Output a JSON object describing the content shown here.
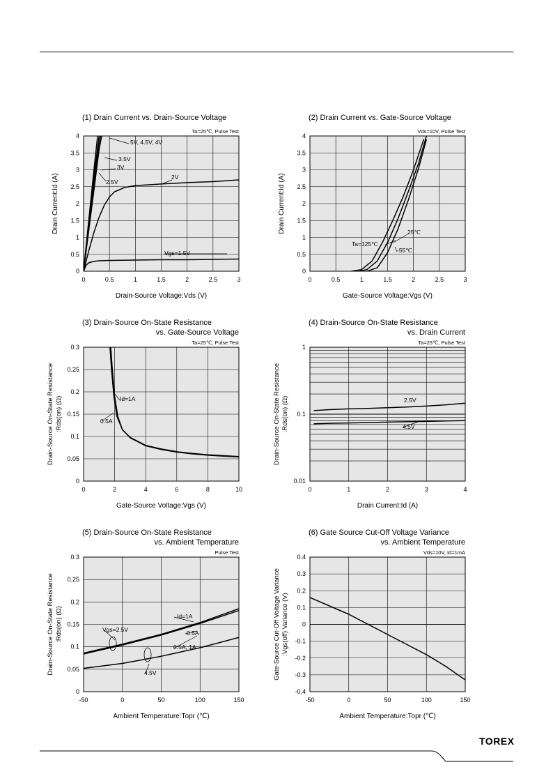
{
  "brand": "TOREX",
  "chart_data": [
    {
      "type": "line",
      "title": "(1) Drain Current vs. Drain-Source Voltage",
      "subtitle": "",
      "condition": "Ta=25℃, Pulse Test",
      "xlabel": "Drain-Source Voltage:Vds  (V)",
      "ylabel": "Drain Current:Id  (A)",
      "xlim": [
        0,
        3
      ],
      "ylim": [
        0,
        4
      ],
      "xticks": [
        "0",
        "0.5",
        "1",
        "1.5",
        "2",
        "2.5",
        "3"
      ],
      "yticks": [
        "0",
        "0.5",
        "1",
        "1.5",
        "2",
        "2.5",
        "3",
        "3.5",
        "4"
      ],
      "grid": true,
      "series": [
        {
          "name": "Vgs=1.5V",
          "x": [
            0,
            0.05,
            0.1,
            0.2,
            0.3,
            0.5,
            1,
            1.5,
            2,
            2.5,
            3
          ],
          "y": [
            0,
            0.18,
            0.25,
            0.29,
            0.31,
            0.32,
            0.33,
            0.34,
            0.34,
            0.35,
            0.36
          ]
        },
        {
          "name": "2V",
          "x": [
            0,
            0.1,
            0.2,
            0.3,
            0.4,
            0.5,
            0.6,
            0.8,
            1.0,
            1.5,
            2.0,
            2.5,
            3.0
          ],
          "y": [
            0,
            0.6,
            1.15,
            1.6,
            1.95,
            2.2,
            2.35,
            2.48,
            2.53,
            2.58,
            2.62,
            2.65,
            2.7
          ]
        },
        {
          "name": "2.5V",
          "x": [
            0,
            0.1,
            0.2,
            0.3,
            0.35
          ],
          "y": [
            0,
            1.2,
            2.4,
            3.6,
            4.0
          ]
        },
        {
          "name": "3V",
          "x": [
            0,
            0.1,
            0.2,
            0.3,
            0.33
          ],
          "y": [
            0,
            1.3,
            2.6,
            3.8,
            4.0
          ]
        },
        {
          "name": "3.5V",
          "x": [
            0,
            0.1,
            0.2,
            0.3
          ],
          "y": [
            0,
            1.4,
            2.8,
            4.0
          ]
        },
        {
          "name": "5V, 4.5V, 4V",
          "x": [
            0,
            0.1,
            0.2,
            0.27
          ],
          "y": [
            0,
            1.5,
            3.0,
            4.0
          ]
        }
      ],
      "labels": [
        "5V, 4.5V, 4V",
        "3.5V",
        "3V",
        "2.5V",
        "2V",
        "Vgs=1.5V"
      ]
    },
    {
      "type": "line",
      "title": "(2) Drain Current vs. Gate-Source Voltage",
      "subtitle": "",
      "condition": "Vds=10V, Pulse Test",
      "xlabel": "Gate-Source Voltage:Vgs  (V)",
      "ylabel": "Drain Current:Id  (A)",
      "xlim": [
        0,
        3
      ],
      "ylim": [
        0,
        4
      ],
      "xticks": [
        "0",
        "0.5",
        "1",
        "1.5",
        "2",
        "2.5",
        "3"
      ],
      "yticks": [
        "0",
        "0.5",
        "1",
        "1.5",
        "2",
        "2.5",
        "3",
        "3.5",
        "4"
      ],
      "grid": true,
      "series": [
        {
          "name": "Ta=125℃",
          "x": [
            0.8,
            1.0,
            1.2,
            1.4,
            1.6,
            1.8,
            2.0,
            2.2
          ],
          "y": [
            0.0,
            0.05,
            0.3,
            0.85,
            1.5,
            2.2,
            3.0,
            3.9
          ]
        },
        {
          "name": "25℃",
          "x": [
            0.95,
            1.1,
            1.3,
            1.5,
            1.7,
            1.9,
            2.1,
            2.25
          ],
          "y": [
            0.0,
            0.05,
            0.3,
            0.85,
            1.55,
            2.35,
            3.2,
            4.0
          ]
        },
        {
          "name": "-55℃",
          "x": [
            1.1,
            1.3,
            1.5,
            1.7,
            1.9,
            2.1,
            2.25
          ],
          "y": [
            0.0,
            0.1,
            0.55,
            1.25,
            2.1,
            3.05,
            3.9
          ]
        }
      ],
      "labels": [
        "25℃",
        "Ta=125℃",
        "-55℃"
      ]
    },
    {
      "type": "line",
      "title": "(3) Drain-Source On-State Resistance",
      "subtitle": "vs. Gate-Source Voltage",
      "condition": "Ta=25℃, Pulse Test",
      "xlabel": "Gate-Source Voltage:Vgs  (V)",
      "ylabel": "Drain-Source On-State Resistance",
      "ylabel2": ":Rds(on) (Ω)",
      "xlim": [
        0,
        10
      ],
      "ylim": [
        0,
        0.3
      ],
      "xticks": [
        "0",
        "2",
        "4",
        "6",
        "8",
        "10"
      ],
      "yticks": [
        "0",
        "0.05",
        "0.1",
        "0.15",
        "0.2",
        "0.25",
        "0.3"
      ],
      "grid": true,
      "series": [
        {
          "name": "Id=1A",
          "x": [
            1.75,
            1.85,
            2.0,
            2.2,
            2.5,
            3.0,
            4.0,
            5.0,
            6.0,
            7.0,
            8.0,
            9.0,
            10.0
          ],
          "y": [
            0.3,
            0.25,
            0.19,
            0.145,
            0.115,
            0.098,
            0.08,
            0.072,
            0.066,
            0.062,
            0.059,
            0.057,
            0.055
          ]
        },
        {
          "name": "0.5A",
          "x": [
            1.7,
            1.8,
            1.95,
            2.15,
            2.5,
            3.0,
            4.0,
            5.0,
            6.0,
            7.0,
            8.0,
            9.0,
            10.0
          ],
          "y": [
            0.3,
            0.25,
            0.19,
            0.145,
            0.115,
            0.097,
            0.079,
            0.071,
            0.065,
            0.061,
            0.058,
            0.056,
            0.054
          ]
        }
      ],
      "labels": [
        "Id=1A",
        "0.5A"
      ]
    },
    {
      "type": "line",
      "title": "(4) Drain-Source On-State Resistance",
      "subtitle": "vs. Drain Current",
      "condition": "Ta=25℃, Pulse Test",
      "xlabel": "Drain Current:Id  (A)",
      "ylabel": "Drain-Source On-State Resistance",
      "ylabel2": ":Rds(on) (Ω)",
      "xlim": [
        0,
        4
      ],
      "ylim": [
        0.01,
        1
      ],
      "yscale": "log",
      "xticks": [
        "0",
        "1",
        "2",
        "3",
        "4"
      ],
      "yticks": [
        "0.01",
        "0.1",
        "1"
      ],
      "grid": true,
      "series": [
        {
          "name": "2.5V",
          "x": [
            0.1,
            0.5,
            1,
            1.5,
            2,
            2.5,
            3,
            3.5,
            4
          ],
          "y": [
            0.113,
            0.117,
            0.12,
            0.122,
            0.125,
            0.128,
            0.132,
            0.138,
            0.146
          ]
        },
        {
          "name": "4.5V",
          "x": [
            0.1,
            0.5,
            1,
            1.5,
            2,
            2.5,
            3,
            3.5,
            4
          ],
          "y": [
            0.072,
            0.073,
            0.074,
            0.075,
            0.076,
            0.077,
            0.078,
            0.079,
            0.08
          ]
        }
      ],
      "labels": [
        "2.5V",
        "4.5V"
      ]
    },
    {
      "type": "line",
      "title": "(5) Drain-Source On-State Resistance",
      "subtitle": "vs. Ambient Temperature",
      "condition": "Pulse Test",
      "xlabel": "Ambient Temperature:Topr (℃)",
      "ylabel": "Drain-Source On-State Resistance",
      "ylabel2": ":Rds(on) (Ω)",
      "xlim": [
        -50,
        150
      ],
      "ylim": [
        0,
        0.3
      ],
      "xticks": [
        "-50",
        "0",
        "50",
        "100",
        "150"
      ],
      "yticks": [
        "0",
        "0.05",
        "0.1",
        "0.15",
        "0.2",
        "0.25",
        "0.3"
      ],
      "grid": true,
      "series": [
        {
          "name": "Vgs=2.5V Id=1A",
          "x": [
            -50,
            0,
            50,
            100,
            150
          ],
          "y": [
            0.086,
            0.106,
            0.128,
            0.154,
            0.185
          ]
        },
        {
          "name": "Vgs=2.5V 0.5A",
          "x": [
            -50,
            0,
            50,
            100,
            150
          ],
          "y": [
            0.084,
            0.104,
            0.126,
            0.152,
            0.181
          ]
        },
        {
          "name": "4.5V 0.5A, 1A",
          "x": [
            -50,
            0,
            50,
            100,
            150
          ],
          "y": [
            0.052,
            0.063,
            0.079,
            0.098,
            0.121
          ]
        }
      ],
      "labels": [
        "Id=1A",
        "Vgs=2.5V",
        "0.5A",
        "0.5A, 1A",
        "4.5V"
      ]
    },
    {
      "type": "line",
      "title": "(6) Gate Source Cut-Off Voltage Variance",
      "subtitle": "vs. Ambient Temperature",
      "condition": "Vds=10V, Id=1mA",
      "xlabel": "Ambient Temperature:Topr (℃)",
      "ylabel": "Gate-Source Cut-Off Voltage Variance",
      "ylabel2": ":Vgs(off) Variance  (V)",
      "xlim": [
        -50,
        150
      ],
      "ylim": [
        -0.4,
        0.4
      ],
      "xticks": [
        "-50",
        "0",
        "50",
        "100",
        "150"
      ],
      "yticks": [
        "-0.4",
        "-0.3",
        "-0.2",
        "-0.1",
        "0",
        "0.1",
        "0.2",
        "0.3",
        "0.4"
      ],
      "grid": true,
      "series": [
        {
          "name": "",
          "x": [
            -50,
            -25,
            0,
            25,
            50,
            75,
            100,
            125,
            150
          ],
          "y": [
            0.16,
            0.11,
            0.06,
            0.0,
            -0.06,
            -0.12,
            -0.18,
            -0.25,
            -0.33
          ]
        }
      ],
      "labels": []
    }
  ]
}
